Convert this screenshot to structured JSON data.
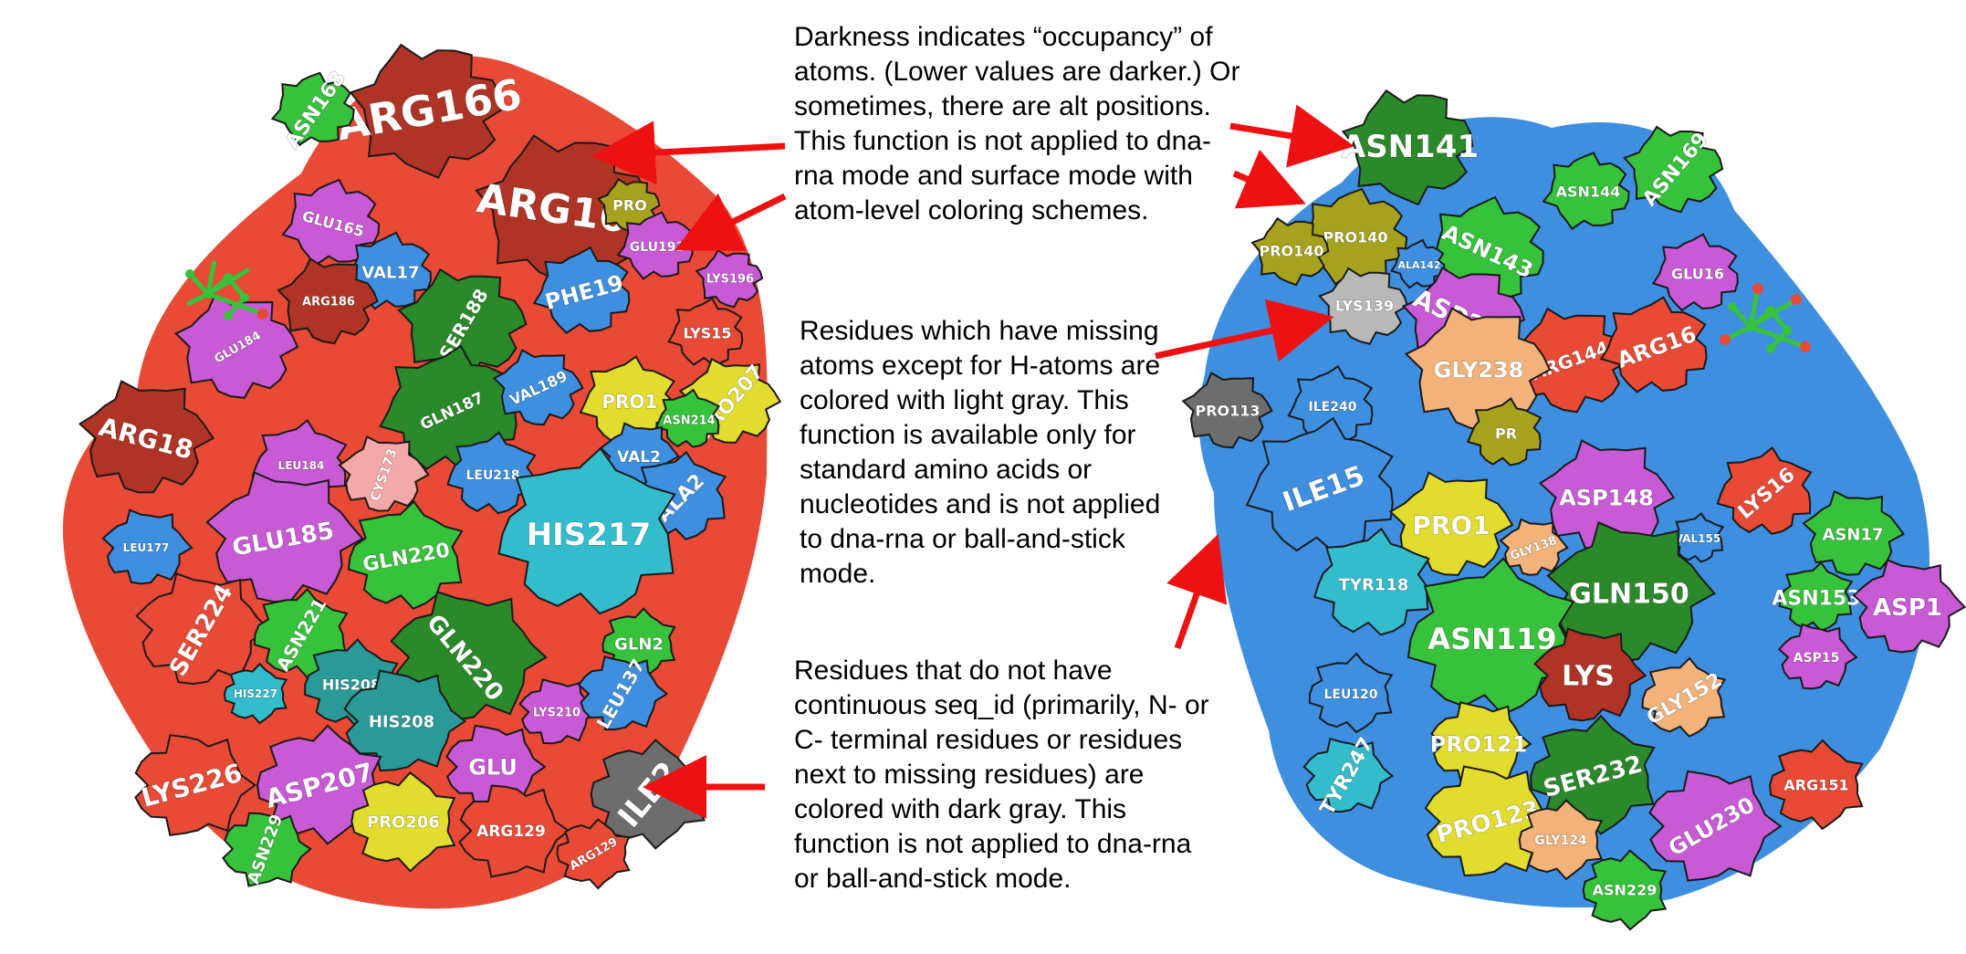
{
  "colors": {
    "green": "#36c23a",
    "dark_green": "#2a8a2a",
    "red": "#e84a36",
    "dark_red": "#b03425",
    "magenta": "#c95ad6",
    "blue": "#3f8fe0",
    "cyan": "#33bccc",
    "teal": "#2a9a98",
    "yellow": "#e2dc2e",
    "olive": "#a7a21e",
    "peach": "#f2b27a",
    "light_gray": "#b8b8b8",
    "dark_gray": "#6d6d6d",
    "pink": "#f3a9a9",
    "arrow": "#ee1111",
    "outline": "#1a1a1a"
  },
  "notes": {
    "occupancy": "Darkness indicates “occupancy” of atoms. (Lower values are darker.) Or sometimes, there are alt positions. This function is not applied to dna-rna mode and surface mode with atom-level coloring schemes.",
    "missing_atoms": "Residues which have missing atoms except for H-atoms are colored with light gray. This function is available only for standard amino acids or nucleotides and is not applied to dna-rna or ball-and-stick mode.",
    "discontinuous": "Residues that do not have continuous seq_id (primarily, N- or C- terminal residues or residues next to missing residues) are colored with dark gray. This function is not applied to dna-rna or ball-and-stick mode."
  },
  "left_protein": [
    {
      "label": "ARG166",
      "color": "dark_red"
    },
    {
      "label": "ASN168",
      "color": "green"
    },
    {
      "label": "ARG169",
      "color": "dark_red"
    },
    {
      "label": "GLU165",
      "color": "magenta"
    },
    {
      "label": "PRO",
      "color": "olive"
    },
    {
      "label": "GLU193",
      "color": "magenta"
    },
    {
      "label": "LYS196",
      "color": "magenta"
    },
    {
      "label": "VAL17",
      "color": "blue"
    },
    {
      "label": "SER188",
      "color": "dark_green"
    },
    {
      "label": "PHE19",
      "color": "blue"
    },
    {
      "label": "ARG186",
      "color": "dark_red"
    },
    {
      "label": "LYS15",
      "color": "red"
    },
    {
      "label": "GLU184",
      "color": "magenta"
    },
    {
      "label": "GLN187",
      "color": "dark_green"
    },
    {
      "label": "VAL189",
      "color": "blue"
    },
    {
      "label": "PRO1",
      "color": "yellow"
    },
    {
      "label": "PRO207",
      "color": "yellow"
    },
    {
      "label": "ASN214",
      "color": "green"
    },
    {
      "label": "ARG18",
      "color": "dark_red"
    },
    {
      "label": "LEU184",
      "color": "magenta"
    },
    {
      "label": "CYS173",
      "color": "pink"
    },
    {
      "label": "LEU218",
      "color": "blue"
    },
    {
      "label": "VAL2",
      "color": "blue"
    },
    {
      "label": "ALA2",
      "color": "blue"
    },
    {
      "label": "GLU185",
      "color": "magenta"
    },
    {
      "label": "HIS217",
      "color": "cyan"
    },
    {
      "label": "LEU177",
      "color": "blue"
    },
    {
      "label": "GLN220",
      "color": "green"
    },
    {
      "label": "SER224",
      "color": "red"
    },
    {
      "label": "ASN221",
      "color": "green"
    },
    {
      "label": "GLN220",
      "color": "dark_green"
    },
    {
      "label": "HIS208",
      "color": "teal"
    },
    {
      "label": "LYS210",
      "color": "magenta"
    },
    {
      "label": "GLN2",
      "color": "green"
    },
    {
      "label": "LEU137",
      "color": "blue"
    },
    {
      "label": "HIS227",
      "color": "cyan"
    },
    {
      "label": "HIS208",
      "color": "teal"
    },
    {
      "label": "ASP207",
      "color": "magenta"
    },
    {
      "label": "GLU",
      "color": "magenta"
    },
    {
      "label": "ILE2",
      "color": "dark_gray"
    },
    {
      "label": "LYS226",
      "color": "red"
    },
    {
      "label": "PRO206",
      "color": "yellow"
    },
    {
      "label": "ARG129",
      "color": "red"
    },
    {
      "label": "ARG129",
      "color": "red"
    },
    {
      "label": "ASN229",
      "color": "green"
    }
  ],
  "right_protein": [
    {
      "label": "ASN141",
      "color": "dark_green"
    },
    {
      "label": "PRO140",
      "color": "olive"
    },
    {
      "label": "PRO140",
      "color": "olive"
    },
    {
      "label": "ASN144",
      "color": "green"
    },
    {
      "label": "ASN169",
      "color": "green"
    },
    {
      "label": "ASN143",
      "color": "green"
    },
    {
      "label": "LYS139",
      "color": "light_gray"
    },
    {
      "label": "ALA142",
      "color": "blue"
    },
    {
      "label": "ASP239",
      "color": "magenta"
    },
    {
      "label": "GLU16",
      "color": "magenta"
    },
    {
      "label": "ARG144",
      "color": "red"
    },
    {
      "label": "ARG16",
      "color": "red"
    },
    {
      "label": "GLY238",
      "color": "peach"
    },
    {
      "label": "ILE240",
      "color": "blue"
    },
    {
      "label": "PRO113",
      "color": "dark_gray"
    },
    {
      "label": "ILE15",
      "color": "blue"
    },
    {
      "label": "PRO1",
      "color": "yellow"
    },
    {
      "label": "PR",
      "color": "olive"
    },
    {
      "label": "ASP148",
      "color": "magenta"
    },
    {
      "label": "LYS16",
      "color": "red"
    },
    {
      "label": "ASN17",
      "color": "green"
    },
    {
      "label": "TYR118",
      "color": "cyan"
    },
    {
      "label": "GLY138",
      "color": "peach"
    },
    {
      "label": "VAL155",
      "color": "blue"
    },
    {
      "label": "GLN150",
      "color": "dark_green"
    },
    {
      "label": "ASN153",
      "color": "green"
    },
    {
      "label": "ASP1",
      "color": "magenta"
    },
    {
      "label": "ASN119",
      "color": "green"
    },
    {
      "label": "LYS",
      "color": "dark_red"
    },
    {
      "label": "GLY152",
      "color": "peach"
    },
    {
      "label": "ASP15",
      "color": "magenta"
    },
    {
      "label": "LEU120",
      "color": "blue"
    },
    {
      "label": "TYR247",
      "color": "cyan"
    },
    {
      "label": "SER232",
      "color": "dark_green"
    },
    {
      "label": "PRO121",
      "color": "yellow"
    },
    {
      "label": "ARG151",
      "color": "red"
    },
    {
      "label": "PRO123",
      "color": "yellow"
    },
    {
      "label": "GLY124",
      "color": "peach"
    },
    {
      "label": "GLU230",
      "color": "magenta"
    },
    {
      "label": "ASN229",
      "color": "green"
    }
  ]
}
